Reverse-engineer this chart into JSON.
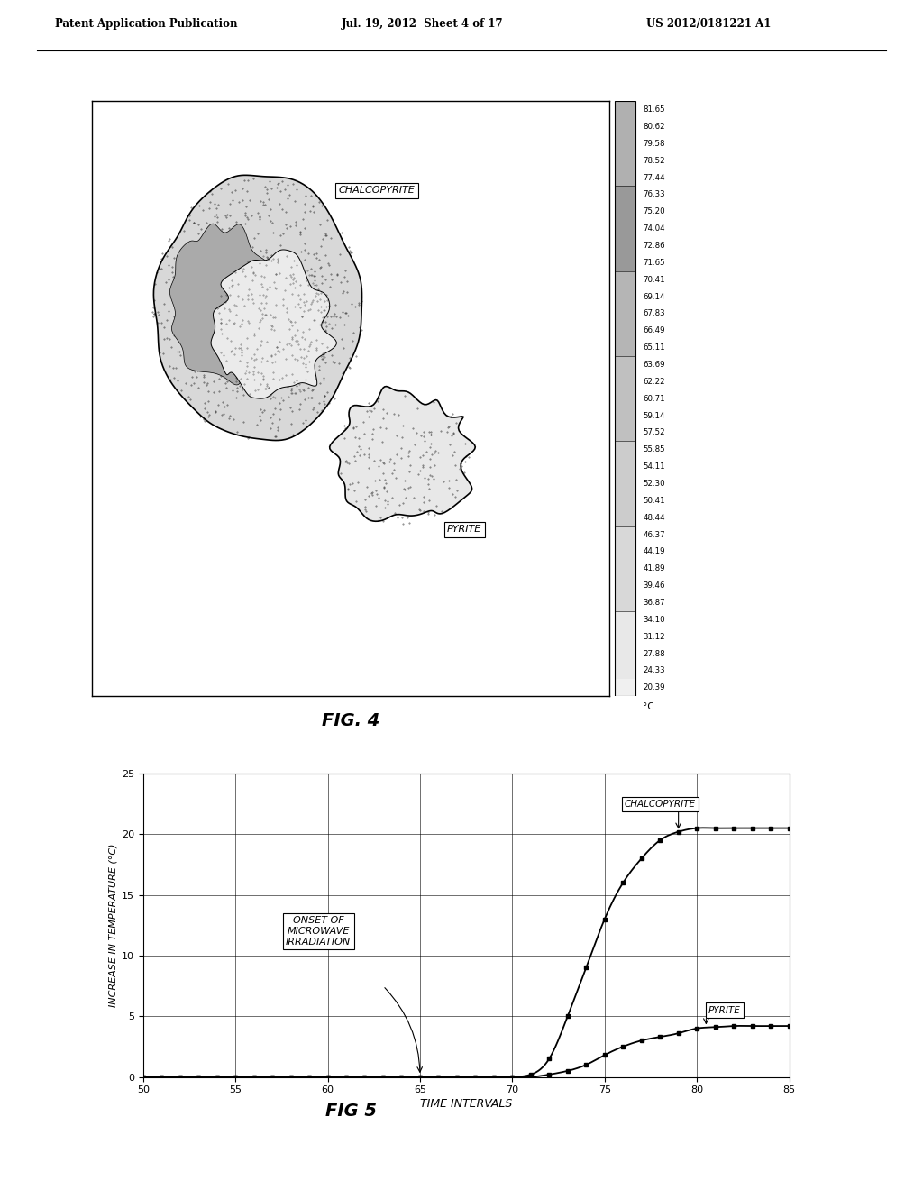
{
  "header_left": "Patent Application Publication",
  "header_mid": "Jul. 19, 2012  Sheet 4 of 17",
  "header_right": "US 2012/0181221 A1",
  "fig4_label": "FIG. 4",
  "fig5_label": "FIG 5",
  "colorbar_values": [
    "81.65",
    "80.62",
    "79.58",
    "78.52",
    "77.44",
    "76.33",
    "75.20",
    "74.04",
    "72.86",
    "71.65",
    "70.41",
    "69.14",
    "67.83",
    "66.49",
    "65.11",
    "63.69",
    "62.22",
    "60.71",
    "59.14",
    "57.52",
    "55.85",
    "54.11",
    "52.30",
    "50.41",
    "48.44",
    "46.37",
    "44.19",
    "41.89",
    "39.46",
    "36.87",
    "34.10",
    "31.12",
    "27.88",
    "24.33",
    "20.39"
  ],
  "colorbar_unit": "°C",
  "chalcopyrite_label": "CHALCOPYRITE",
  "pyrite_label": "PYRITE",
  "fig5_xlabel": "TIME INTERVALS",
  "fig5_ylabel": "INCREASE IN TEMPERATURE (°C)",
  "chalcopyrite_x": [
    50,
    51,
    52,
    53,
    54,
    55,
    56,
    57,
    58,
    59,
    60,
    61,
    62,
    63,
    64,
    65,
    66,
    67,
    68,
    69,
    70,
    71,
    72,
    73,
    74,
    75,
    76,
    77,
    78,
    79,
    80,
    81,
    82,
    83,
    84,
    85
  ],
  "chalcopyrite_y": [
    0,
    0,
    0,
    0,
    0,
    0,
    0,
    0,
    0,
    0,
    0,
    0,
    0,
    0,
    0,
    0,
    0,
    0,
    0,
    0,
    0,
    0.2,
    1.5,
    5,
    9,
    13,
    16,
    18,
    19.5,
    20.2,
    20.5,
    20.5,
    20.5,
    20.5,
    20.5,
    20.5
  ],
  "pyrite_x": [
    50,
    51,
    52,
    53,
    54,
    55,
    56,
    57,
    58,
    59,
    60,
    61,
    62,
    63,
    64,
    65,
    66,
    67,
    68,
    69,
    70,
    71,
    72,
    73,
    74,
    75,
    76,
    77,
    78,
    79,
    80,
    81,
    82,
    83,
    84,
    85
  ],
  "pyrite_y": [
    0,
    0,
    0,
    0,
    0,
    0,
    0,
    0,
    0,
    0,
    0,
    0,
    0,
    0,
    0,
    0,
    0,
    0,
    0,
    0,
    0,
    0,
    0.2,
    0.5,
    1.0,
    1.8,
    2.5,
    3.0,
    3.3,
    3.6,
    4.0,
    4.1,
    4.2,
    4.2,
    4.2,
    4.2
  ],
  "onset_label_line1": "ONSET OF",
  "onset_label_line2": "MICROWAVE",
  "onset_label_line3": "IRRADIATION",
  "fig5_xlim": [
    50,
    85
  ],
  "fig5_ylim": [
    0,
    25
  ],
  "fig5_xticks": [
    50,
    55,
    60,
    65,
    70,
    75,
    80,
    85
  ],
  "fig5_yticks": [
    0,
    5,
    10,
    15,
    20,
    25
  ],
  "background_color": "#ffffff"
}
